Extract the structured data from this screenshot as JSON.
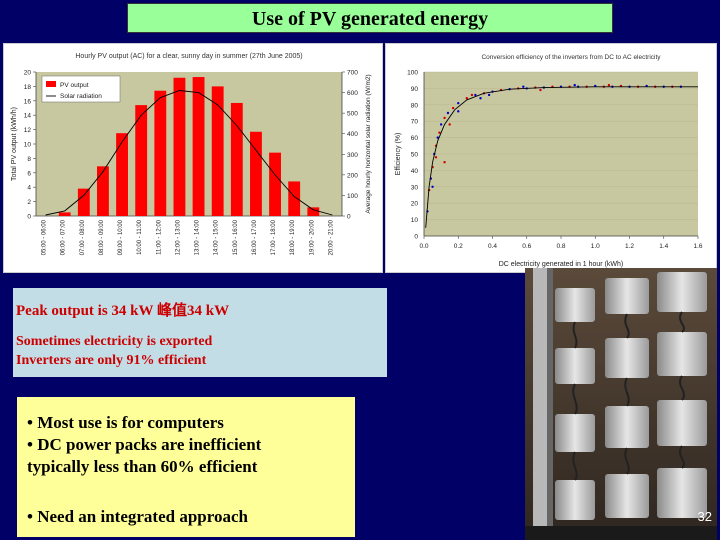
{
  "slide": {
    "title": "Use of PV generated energy",
    "page_number": "32",
    "info": {
      "peak": "Peak output is 34 kW 峰值34 kW",
      "line1": "Sometimes electricity is exported",
      "line2": "Inverters are only 91% efficient"
    },
    "bullets": {
      "b1": "• Most use is for computers",
      "b2": "• DC power packs are inefficient",
      "b2_cont": "typically less than 60% efficient",
      "b3": "• Need an integrated approach"
    }
  },
  "chart_data": [
    {
      "type": "bar",
      "title": "Hourly PV output (AC) for a clear, sunny day in summer (27th June 2005)",
      "ylabel": "Total PV output (kWh/h)",
      "y2label": "Average hourly horizontal solar radiation (W/m2)",
      "ylim": [
        0,
        20
      ],
      "y2lim": [
        0,
        700
      ],
      "yticks": [
        "0",
        "2",
        "4",
        "6",
        "8",
        "10",
        "12",
        "14",
        "16",
        "18",
        "20"
      ],
      "y2ticks": [
        "0",
        "100",
        "200",
        "300",
        "400",
        "500",
        "600",
        "700"
      ],
      "categories": [
        "05:00 - 06:00",
        "06:00 - 07:00",
        "07:00 - 08:00",
        "08:00 - 09:00",
        "09:00 - 10:00",
        "10:00 - 11:00",
        "11:00 - 12:00",
        "12:00 - 13:00",
        "13:00 - 14:00",
        "14:00 - 15:00",
        "15:00 - 16:00",
        "16:00 - 17:00",
        "17:00 - 18:00",
        "18:00 - 19:00",
        "19:00 - 20:00",
        "20:00 - 21:00"
      ],
      "series": [
        {
          "name": "PV output",
          "values": [
            0,
            0.5,
            3.8,
            6.9,
            11.5,
            15.4,
            17.4,
            19.2,
            19.3,
            18.0,
            15.7,
            11.7,
            8.8,
            4.8,
            1.2,
            0
          ]
        },
        {
          "name": "Solar radiation",
          "values": [
            5,
            25,
            100,
            215,
            360,
            490,
            575,
            610,
            600,
            540,
            440,
            320,
            200,
            95,
            30,
            5
          ]
        }
      ],
      "legend_position": "top-left",
      "colors": {
        "bars": "#ff0000",
        "line": "#000000",
        "plot_bg": "#c8c8a0"
      }
    },
    {
      "type": "scatter",
      "title": "Conversion efficiency of the inverters from DC to AC electricity",
      "xlabel": "DC electricity generated in 1 hour (kWh)",
      "ylabel": "Efficiency (%)",
      "xlim": [
        0,
        1.6
      ],
      "ylim": [
        0,
        100
      ],
      "xticks": [
        "0.0",
        "0.2",
        "0.4",
        "0.6",
        "0.8",
        "1.0",
        "1.2",
        "1.4",
        "1.6"
      ],
      "yticks": [
        "0",
        "10",
        "20",
        "30",
        "40",
        "50",
        "60",
        "70",
        "80",
        "90",
        "100"
      ],
      "points": [
        [
          0.02,
          15
        ],
        [
          0.03,
          28
        ],
        [
          0.04,
          35
        ],
        [
          0.05,
          42
        ],
        [
          0.06,
          50
        ],
        [
          0.07,
          55
        ],
        [
          0.08,
          60
        ],
        [
          0.09,
          63
        ],
        [
          0.1,
          68
        ],
        [
          0.12,
          72
        ],
        [
          0.14,
          75
        ],
        [
          0.17,
          78
        ],
        [
          0.2,
          81
        ],
        [
          0.25,
          84
        ],
        [
          0.3,
          86
        ],
        [
          0.35,
          87
        ],
        [
          0.4,
          88
        ],
        [
          0.45,
          89
        ],
        [
          0.5,
          89.5
        ],
        [
          0.55,
          90
        ],
        [
          0.6,
          90
        ],
        [
          0.65,
          90.5
        ],
        [
          0.7,
          90.5
        ],
        [
          0.75,
          91
        ],
        [
          0.8,
          91
        ],
        [
          0.85,
          91
        ],
        [
          0.9,
          91
        ],
        [
          0.95,
          91
        ],
        [
          1.0,
          91.5
        ],
        [
          1.05,
          91
        ],
        [
          1.1,
          91
        ],
        [
          1.15,
          91.5
        ],
        [
          1.2,
          91
        ],
        [
          1.25,
          91
        ],
        [
          1.3,
          91.5
        ],
        [
          1.35,
          91
        ],
        [
          1.4,
          91
        ],
        [
          1.45,
          91
        ],
        [
          1.5,
          91
        ],
        [
          0.12,
          45
        ],
        [
          0.05,
          30
        ],
        [
          0.28,
          86
        ],
        [
          0.58,
          91
        ],
        [
          0.68,
          89
        ],
        [
          0.88,
          92
        ],
        [
          1.08,
          92
        ],
        [
          0.38,
          86
        ],
        [
          0.15,
          68
        ],
        [
          0.2,
          76
        ],
        [
          0.07,
          48
        ],
        [
          0.33,
          84
        ]
      ],
      "fit": [
        [
          0.01,
          5
        ],
        [
          0.03,
          30
        ],
        [
          0.05,
          45
        ],
        [
          0.08,
          58
        ],
        [
          0.12,
          68
        ],
        [
          0.18,
          77
        ],
        [
          0.25,
          83
        ],
        [
          0.35,
          87
        ],
        [
          0.5,
          89.5
        ],
        [
          0.7,
          90.5
        ],
        [
          1.0,
          91
        ],
        [
          1.3,
          91
        ],
        [
          1.6,
          91
        ]
      ],
      "colors": {
        "points": [
          "#0000cc",
          "#cc0000"
        ],
        "fit": "#000000",
        "plot_bg": "#c8c8a0"
      }
    }
  ]
}
